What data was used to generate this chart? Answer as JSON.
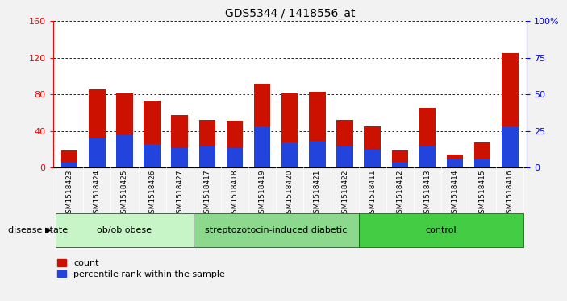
{
  "title": "GDS5344 / 1418556_at",
  "samples": [
    "GSM1518423",
    "GSM1518424",
    "GSM1518425",
    "GSM1518426",
    "GSM1518427",
    "GSM1518417",
    "GSM1518418",
    "GSM1518419",
    "GSM1518420",
    "GSM1518421",
    "GSM1518422",
    "GSM1518411",
    "GSM1518412",
    "GSM1518413",
    "GSM1518414",
    "GSM1518415",
    "GSM1518416"
  ],
  "counts": [
    18,
    85,
    81,
    73,
    57,
    52,
    51,
    92,
    82,
    83,
    52,
    45,
    18,
    65,
    14,
    27,
    125
  ],
  "percentiles_pct": [
    3,
    20,
    22,
    16,
    13,
    14,
    13,
    28,
    17,
    18,
    14,
    12,
    4,
    14,
    6,
    6,
    28
  ],
  "groups": [
    {
      "label": "ob/ob obese",
      "start": 0,
      "end": 5
    },
    {
      "label": "streptozotocin-induced diabetic",
      "start": 5,
      "end": 11
    },
    {
      "label": "control",
      "start": 11,
      "end": 17
    }
  ],
  "group_colors": [
    "#c8f5c8",
    "#8cd88c",
    "#44cc44"
  ],
  "bar_color": "#cc1100",
  "percentile_color": "#2244dd",
  "ylim_left": [
    0,
    160
  ],
  "ylim_right": [
    0,
    100
  ],
  "yticks_left": [
    0,
    40,
    80,
    120,
    160
  ],
  "yticks_right": [
    0,
    25,
    50,
    75,
    100
  ],
  "yticklabels_right": [
    "0",
    "25",
    "50",
    "75",
    "100%"
  ],
  "legend_count": "count",
  "legend_percentile": "percentile rank within the sample",
  "disease_state_label": "disease state"
}
